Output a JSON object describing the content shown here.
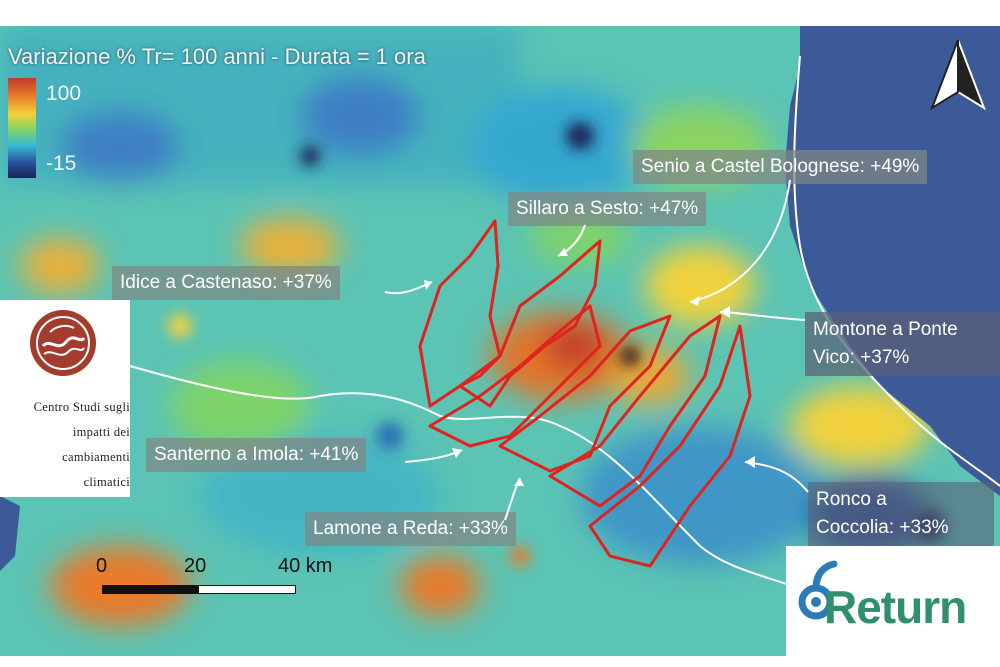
{
  "title": "Variazione % Tr= 100 anni - Durata = 1 ora",
  "legend": {
    "max": "100",
    "min": "-15",
    "colors": [
      "#c0392b",
      "#e87a2a",
      "#f2d23c",
      "#7ed36a",
      "#36b8d8",
      "#2a4f9a",
      "#1a2456"
    ]
  },
  "labels": {
    "senio": "Senio a Castel Bolognese: +49%",
    "sillaro": "Sillaro a Sesto: +47%",
    "idice": "Idice a Castenaso: +37%",
    "montone_1": "Montone a Ponte",
    "montone_2": "Vico: +37%",
    "santerno": "Santerno a Imola: +41%",
    "lamone": "Lamone a Reda: +33%",
    "ronco_1": "Ronco a",
    "ronco_2": "Coccolia: +33%"
  },
  "scale_bar": {
    "ticks": [
      "0",
      "20",
      "40 km"
    ]
  },
  "logos": {
    "cmcc_lines": [
      "Centro Studi sugli",
      "impatti dei",
      "cambiamenti",
      "climatici"
    ],
    "return_text": "Return"
  },
  "map_colors": {
    "sea": "#3b5a97",
    "basin_outline": "#e0231d",
    "boundary": "#ffffff"
  },
  "icons": {
    "north_arrow": "north-arrow-icon",
    "cmcc_logo": "cmcc-logo-icon",
    "return_logo": "return-logo-icon"
  }
}
